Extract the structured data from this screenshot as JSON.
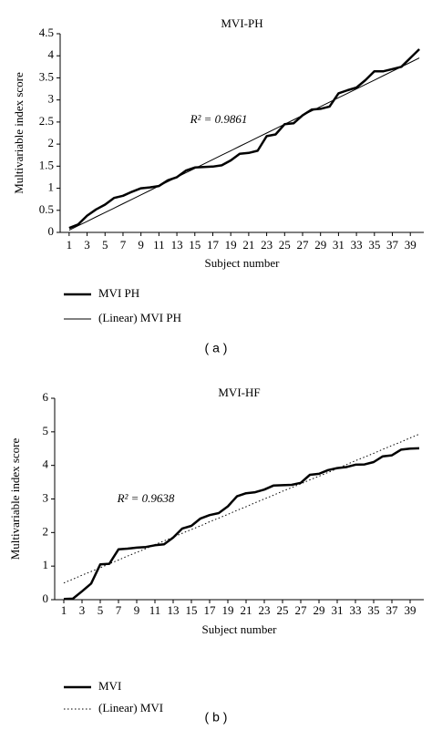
{
  "chart_data": [
    {
      "type": "line",
      "title": "MVI-PH",
      "x_label": "Subject number",
      "y_label": "Multivariable index score",
      "annotation": "R² = 0.9861",
      "caption": "( a )",
      "x": [
        1,
        2,
        3,
        4,
        5,
        6,
        7,
        8,
        9,
        10,
        11,
        12,
        13,
        14,
        15,
        16,
        17,
        18,
        19,
        20,
        21,
        22,
        23,
        24,
        25,
        26,
        27,
        28,
        29,
        30,
        31,
        32,
        33,
        34,
        35,
        36,
        37,
        38,
        39,
        40
      ],
      "xlim": [
        0,
        40.5
      ],
      "xticks": [
        1,
        3,
        5,
        7,
        9,
        11,
        13,
        15,
        17,
        19,
        21,
        23,
        25,
        27,
        29,
        31,
        33,
        35,
        37,
        39
      ],
      "ylim": [
        0,
        4.5
      ],
      "yticks": [
        0,
        0.5,
        1,
        1.5,
        2,
        2.5,
        3,
        3.5,
        4,
        4.5
      ],
      "series": [
        {
          "name": "MVI PH",
          "color": "#000000",
          "line_width": 2.5,
          "dash": "solid",
          "values": [
            0.1,
            0.18,
            0.38,
            0.52,
            0.63,
            0.78,
            0.83,
            0.92,
            1.0,
            1.02,
            1.05,
            1.18,
            1.25,
            1.4,
            1.47,
            1.48,
            1.49,
            1.52,
            1.63,
            1.78,
            1.8,
            1.85,
            2.18,
            2.22,
            2.45,
            2.47,
            2.65,
            2.78,
            2.8,
            2.85,
            3.15,
            3.22,
            3.28,
            3.45,
            3.65,
            3.65,
            3.7,
            3.75,
            3.95,
            4.15
          ]
        },
        {
          "name": "(Linear) MVI PH",
          "color": "#000000",
          "line_width": 1,
          "dash": "solid",
          "values": [
            0.05,
            0.15,
            0.25,
            0.35,
            0.45,
            0.55,
            0.65,
            0.75,
            0.85,
            0.95,
            1.05,
            1.15,
            1.25,
            1.35,
            1.45,
            1.55,
            1.65,
            1.75,
            1.85,
            1.95,
            2.05,
            2.15,
            2.25,
            2.35,
            2.45,
            2.55,
            2.65,
            2.75,
            2.85,
            2.95,
            3.05,
            3.15,
            3.25,
            3.35,
            3.45,
            3.55,
            3.65,
            3.75,
            3.85,
            3.95
          ]
        }
      ]
    },
    {
      "type": "line",
      "title": "MVI-HF",
      "x_label": "Subject number",
      "y_label": "Multivariable index score",
      "annotation": "R² = 0.9638",
      "caption": "( b )",
      "x": [
        1,
        2,
        3,
        4,
        5,
        6,
        7,
        8,
        9,
        10,
        11,
        12,
        13,
        14,
        15,
        16,
        17,
        18,
        19,
        20,
        21,
        22,
        23,
        24,
        25,
        26,
        27,
        28,
        29,
        30,
        31,
        32,
        33,
        34,
        35,
        36,
        37,
        38,
        39,
        40
      ],
      "xlim": [
        0,
        40.5
      ],
      "xticks": [
        1,
        3,
        5,
        7,
        9,
        11,
        13,
        15,
        17,
        19,
        21,
        23,
        25,
        27,
        29,
        31,
        33,
        35,
        37,
        39
      ],
      "ylim": [
        0,
        6
      ],
      "yticks": [
        0,
        1,
        2,
        3,
        4,
        5,
        6
      ],
      "series": [
        {
          "name": "MVI",
          "color": "#000000",
          "line_width": 2.5,
          "dash": "solid",
          "values": [
            0.02,
            0.03,
            0.25,
            0.48,
            1.05,
            1.07,
            1.5,
            1.52,
            1.55,
            1.57,
            1.62,
            1.65,
            1.85,
            2.12,
            2.2,
            2.42,
            2.52,
            2.58,
            2.78,
            3.08,
            3.17,
            3.2,
            3.28,
            3.4,
            3.41,
            3.42,
            3.48,
            3.72,
            3.75,
            3.86,
            3.92,
            3.95,
            4.02,
            4.03,
            4.1,
            4.27,
            4.3,
            4.47,
            4.5,
            4.51
          ]
        },
        {
          "name": "(Linear) MVI",
          "color": "#000000",
          "line_width": 1,
          "dash": "dotted",
          "values": [
            0.5,
            0.61,
            0.73,
            0.84,
            0.95,
            1.07,
            1.18,
            1.3,
            1.41,
            1.52,
            1.64,
            1.75,
            1.86,
            1.98,
            2.09,
            2.2,
            2.32,
            2.43,
            2.54,
            2.66,
            2.77,
            2.89,
            3.0,
            3.11,
            3.23,
            3.34,
            3.45,
            3.57,
            3.68,
            3.79,
            3.91,
            4.02,
            4.14,
            4.25,
            4.36,
            4.48,
            4.59,
            4.7,
            4.82,
            4.93
          ]
        }
      ]
    }
  ]
}
